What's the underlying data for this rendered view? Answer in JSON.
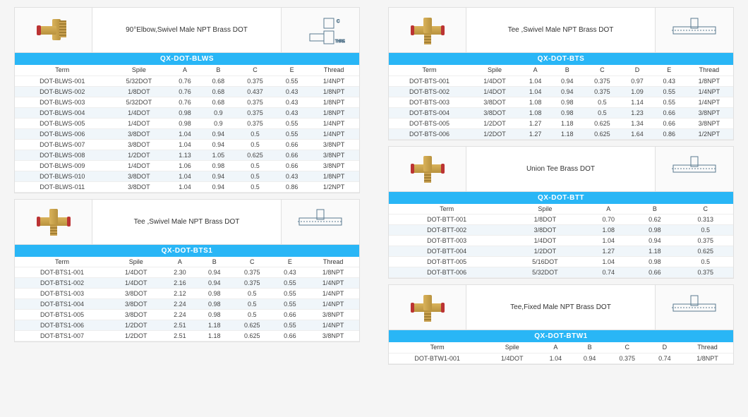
{
  "colors": {
    "header_bar": "#29b6f6",
    "row_alt": "#f0f6fa",
    "border": "#e0e0e0",
    "text": "#444"
  },
  "sections": [
    {
      "id": "blws",
      "col": 0,
      "title": "90°Elbow,Swivel Male NPT Brass DOT",
      "code": "QX-DOT-BLWS",
      "icon": "elbow",
      "columns": [
        "Term",
        "Spile",
        "A",
        "B",
        "C",
        "E",
        "Thread"
      ],
      "rows": [
        [
          "DOT-BLWS-001",
          "5/32DOT",
          "0.76",
          "0.68",
          "0.375",
          "0.55",
          "1/4NPT"
        ],
        [
          "DOT-BLWS-002",
          "1/8DOT",
          "0.76",
          "0.68",
          "0.437",
          "0.43",
          "1/8NPT"
        ],
        [
          "DOT-BLWS-003",
          "5/32DOT",
          "0.76",
          "0.68",
          "0.375",
          "0.43",
          "1/8NPT"
        ],
        [
          "DOT-BLWS-004",
          "1/4DOT",
          "0.98",
          "0.9",
          "0.375",
          "0.43",
          "1/8NPT"
        ],
        [
          "DOT-BLWS-005",
          "1/4DOT",
          "0.98",
          "0.9",
          "0.375",
          "0.55",
          "1/4NPT"
        ],
        [
          "DOT-BLWS-006",
          "3/8DOT",
          "1.04",
          "0.94",
          "0.5",
          "0.55",
          "1/4NPT"
        ],
        [
          "DOT-BLWS-007",
          "3/8DOT",
          "1.04",
          "0.94",
          "0.5",
          "0.66",
          "3/8NPT"
        ],
        [
          "DOT-BLWS-008",
          "1/2DOT",
          "1.13",
          "1.05",
          "0.625",
          "0.66",
          "3/8NPT"
        ],
        [
          "DOT-BLWS-009",
          "1/4DOT",
          "1.06",
          "0.98",
          "0.5",
          "0.66",
          "3/8NPT"
        ],
        [
          "DOT-BLWS-010",
          "3/8DOT",
          "1.04",
          "0.94",
          "0.5",
          "0.43",
          "1/8NPT"
        ],
        [
          "DOT-BLWS-011",
          "3/8DOT",
          "1.04",
          "0.94",
          "0.5",
          "0.86",
          "1/2NPT"
        ]
      ]
    },
    {
      "id": "bts1",
      "col": 0,
      "title": "Tee ,Swivel Male NPT Brass DOT",
      "code": "QX-DOT-BTS1",
      "icon": "tee",
      "columns": [
        "Term",
        "Spile",
        "A",
        "B",
        "C",
        "E",
        "Thread"
      ],
      "rows": [
        [
          "DOT-BTS1-001",
          "1/4DOT",
          "2.30",
          "0.94",
          "0.375",
          "0.43",
          "1/8NPT"
        ],
        [
          "DOT-BTS1-002",
          "1/4DOT",
          "2.16",
          "0.94",
          "0.375",
          "0.55",
          "1/4NPT"
        ],
        [
          "DOT-BTS1-003",
          "3/8DOT",
          "2.12",
          "0.98",
          "0.5",
          "0.55",
          "1/4NPT"
        ],
        [
          "DOT-BTS1-004",
          "3/8DOT",
          "2.24",
          "0.98",
          "0.5",
          "0.55",
          "1/4NPT"
        ],
        [
          "DOT-BTS1-005",
          "3/8DOT",
          "2.24",
          "0.98",
          "0.5",
          "0.66",
          "3/8NPT"
        ],
        [
          "DOT-BTS1-006",
          "1/2DOT",
          "2.51",
          "1.18",
          "0.625",
          "0.55",
          "1/4NPT"
        ],
        [
          "DOT-BTS1-007",
          "1/2DOT",
          "2.51",
          "1.18",
          "0.625",
          "0.66",
          "3/8NPT"
        ]
      ]
    },
    {
      "id": "bts",
      "col": 1,
      "title": "Tee ,Swivel Male NPT Brass DOT",
      "code": "QX-DOT-BTS",
      "icon": "tee",
      "columns": [
        "Term",
        "Spile",
        "A",
        "B",
        "C",
        "D",
        "E",
        "Thread"
      ],
      "rows": [
        [
          "DOT-BTS-001",
          "1/4DOT",
          "1.04",
          "0.94",
          "0.375",
          "0.97",
          "0.43",
          "1/8NPT"
        ],
        [
          "DOT-BTS-002",
          "1/4DOT",
          "1.04",
          "0.94",
          "0.375",
          "1.09",
          "0.55",
          "1/4NPT"
        ],
        [
          "DOT-BTS-003",
          "3/8DOT",
          "1.08",
          "0.98",
          "0.5",
          "1.14",
          "0.55",
          "1/4NPT"
        ],
        [
          "DOT-BTS-004",
          "3/8DOT",
          "1.08",
          "0.98",
          "0.5",
          "1.23",
          "0.66",
          "3/8NPT"
        ],
        [
          "DOT-BTS-005",
          "1/2DOT",
          "1.27",
          "1.18",
          "0.625",
          "1.34",
          "0.66",
          "3/8NPT"
        ],
        [
          "DOT-BTS-006",
          "1/2DOT",
          "1.27",
          "1.18",
          "0.625",
          "1.64",
          "0.86",
          "1/2NPT"
        ]
      ]
    },
    {
      "id": "btt",
      "col": 1,
      "title": "Union Tee Brass DOT",
      "code": "QX-DOT-BTT",
      "icon": "tee",
      "columns": [
        "Term",
        "Spile",
        "A",
        "B",
        "C"
      ],
      "rows": [
        [
          "DOT-BTT-001",
          "1/8DOT",
          "0.70",
          "0.62",
          "0.313"
        ],
        [
          "DOT-BTT-002",
          "3/8DOT",
          "1.08",
          "0.98",
          "0.5"
        ],
        [
          "DOT-BTT-003",
          "1/4DOT",
          "1.04",
          "0.94",
          "0.375"
        ],
        [
          "DOT-BTT-004",
          "1/2DOT",
          "1.27",
          "1.18",
          "0.625"
        ],
        [
          "DOT-BTT-005",
          "5/16DOT",
          "1.04",
          "0.98",
          "0.5"
        ],
        [
          "DOT-BTT-006",
          "5/32DOT",
          "0.74",
          "0.66",
          "0.375"
        ]
      ]
    },
    {
      "id": "btw1",
      "col": 1,
      "title": "Tee,Fixed Male NPT Brass DOT",
      "code": "QX-DOT-BTW1",
      "icon": "tee",
      "columns": [
        "Term",
        "Spile",
        "A",
        "B",
        "C",
        "D",
        "Thread"
      ],
      "rows": [
        [
          "DOT-BTW1-001",
          "1/4DOT",
          "1.04",
          "0.94",
          "0.375",
          "0.74",
          "1/8NPT"
        ]
      ]
    }
  ]
}
